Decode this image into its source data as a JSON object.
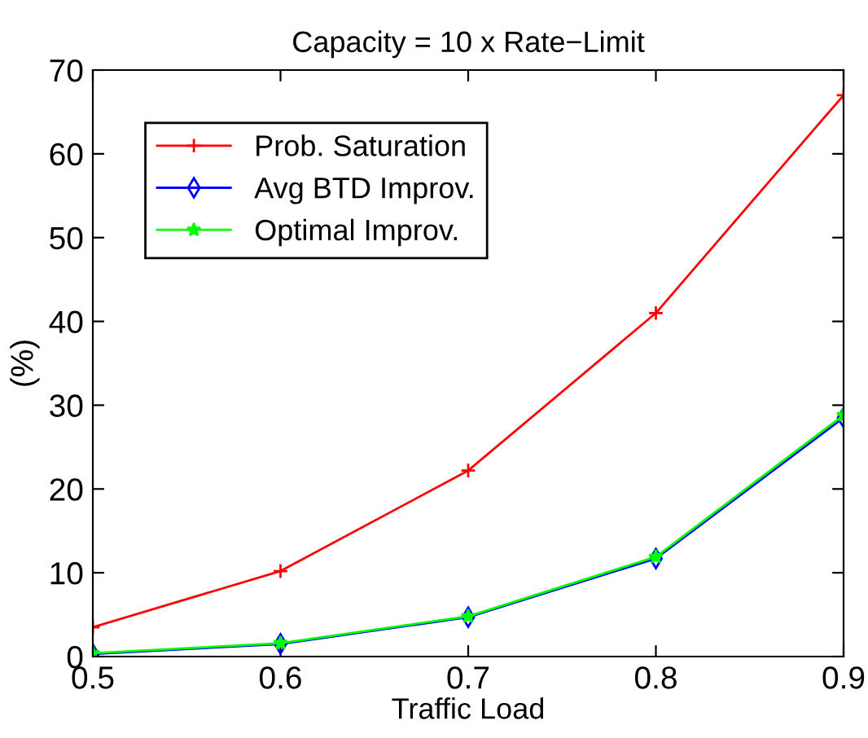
{
  "chart_data": {
    "type": "line",
    "title": "Capacity = 10 x Rate−Limit",
    "xlabel": "Traffic Load",
    "ylabel": "(%)",
    "x": [
      0.5,
      0.6,
      0.7,
      0.8,
      0.9
    ],
    "series": [
      {
        "name": "Prob. Saturation",
        "color": "#ff0000",
        "marker": "cross",
        "values": [
          3.5,
          10.2,
          22.2,
          41,
          67
        ]
      },
      {
        "name": "Avg BTD Improv.",
        "color": "#0000ff",
        "marker": "diamond",
        "values": [
          0.3,
          1.5,
          4.7,
          11.7,
          28.5
        ]
      },
      {
        "name": "Optimal Improv.",
        "color": "#00ff00",
        "marker": "star",
        "values": [
          0.4,
          1.6,
          4.8,
          11.9,
          28.8
        ]
      }
    ],
    "xlim": [
      0.5,
      0.9
    ],
    "xticks": [
      0.5,
      0.6,
      0.7,
      0.8,
      0.9
    ],
    "ylim": [
      0,
      70
    ],
    "yticks": [
      0,
      10,
      20,
      30,
      40,
      50,
      60,
      70
    ],
    "grid": false,
    "legend": "top left",
    "line_style": "solid"
  }
}
